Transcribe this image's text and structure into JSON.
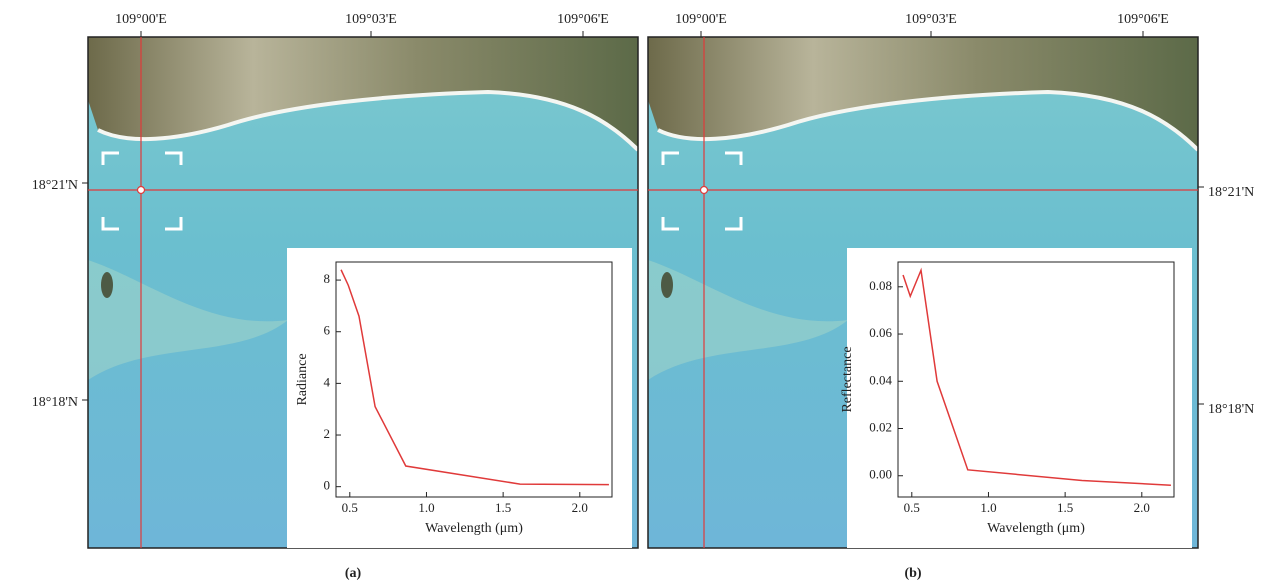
{
  "map": {
    "lon_labels": [
      "109°00'E",
      "109°03'E",
      "109°06'E"
    ],
    "lat_labels": [
      "18°21'N",
      "18°18'N"
    ]
  },
  "panel_labels": [
    "(a)",
    "(b)"
  ],
  "chart_data": [
    {
      "type": "line",
      "x_label": "Wavelength (μm)",
      "y_label": "Radiance",
      "x": [
        0.443,
        0.49,
        0.56,
        0.665,
        0.865,
        1.61,
        2.19
      ],
      "values": [
        8.4,
        7.8,
        6.6,
        3.1,
        0.8,
        0.1,
        0.08
      ],
      "color": "#e03a3a",
      "xlim": [
        0.41,
        2.21
      ],
      "ylim": [
        -0.4,
        8.7
      ],
      "xticks": [
        0.5,
        {
          "value": 1.0,
          "label": "1.0"
        },
        1.5,
        {
          "value": 2.0,
          "label": "2.0"
        }
      ],
      "yticks": [
        0,
        2,
        4,
        6,
        8
      ]
    },
    {
      "type": "line",
      "x_label": "Wavelength (μm)",
      "y_label": "Reflectance",
      "x": [
        0.443,
        0.49,
        0.56,
        0.665,
        0.865,
        1.61,
        2.19
      ],
      "values": [
        0.085,
        0.076,
        0.087,
        0.04,
        0.0025,
        -0.002,
        -0.004
      ],
      "color": "#e03a3a",
      "xlim": [
        0.41,
        2.21
      ],
      "ylim": [
        -0.009,
        0.0905
      ],
      "xticks": [
        0.5,
        {
          "value": 1.0,
          "label": "1.0"
        },
        1.5,
        {
          "value": 2.0,
          "label": "2.0"
        }
      ],
      "yticks": [
        {
          "value": 0,
          "label": "0.00"
        },
        0.02,
        0.04,
        0.06,
        0.08
      ]
    }
  ]
}
